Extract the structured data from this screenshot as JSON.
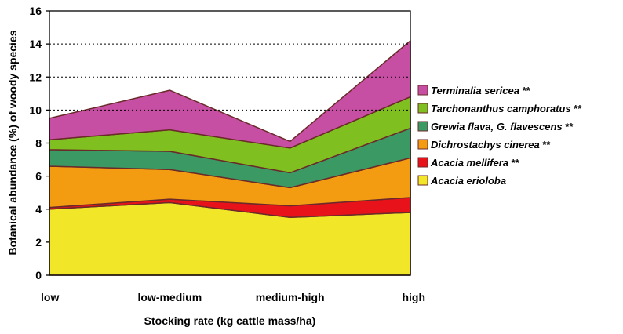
{
  "chart_data": {
    "type": "area",
    "stacked": true,
    "categories": [
      "low",
      "low-medium",
      "medium-high",
      "high"
    ],
    "xlabel": "Stocking rate (kg cattle mass/ha)",
    "ylabel": "Botanical abundance (%) of woody species",
    "ylim": [
      0,
      16
    ],
    "yticks": [
      "0",
      "2",
      "4",
      "6",
      "8",
      "10",
      "12",
      "14",
      "16"
    ],
    "grid": "dotted horizontal at 10, 12, 14",
    "legend_position": "right",
    "series": [
      {
        "name": "Acacia erioloba",
        "marker": "",
        "color": "#f2e628",
        "values": [
          4.0,
          4.4,
          3.5,
          3.8
        ]
      },
      {
        "name": "Acacia mellifera",
        "marker": "**",
        "color": "#e8121a",
        "values": [
          0.1,
          0.2,
          0.7,
          0.9
        ]
      },
      {
        "name": "Dichrostachys cinerea",
        "marker": "**",
        "color": "#f39c12",
        "values": [
          2.5,
          1.8,
          1.1,
          2.4
        ]
      },
      {
        "name": "Grewia flava, G. flavescens",
        "marker": "**",
        "color": "#3b9a63",
        "values": [
          1.0,
          1.1,
          0.9,
          1.8
        ]
      },
      {
        "name": "Tarchonanthus camphoratus",
        "marker": "**",
        "color": "#7fbf1f",
        "values": [
          0.6,
          1.3,
          1.5,
          1.9
        ]
      },
      {
        "name": "Terminalia sericea",
        "marker": "**",
        "color": "#c64fa3",
        "values": [
          1.3,
          2.4,
          0.4,
          3.4
        ]
      }
    ]
  }
}
